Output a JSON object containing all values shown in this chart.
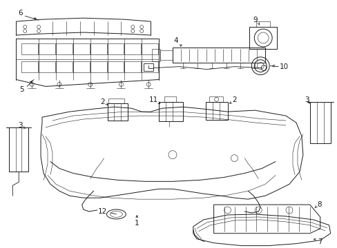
{
  "bg_color": "#ffffff",
  "fg_color": "#1a1a1a",
  "fig_width": 4.89,
  "fig_height": 3.6,
  "dpi": 100,
  "lw": 0.7,
  "lw_thin": 0.4,
  "fs": 7.5
}
